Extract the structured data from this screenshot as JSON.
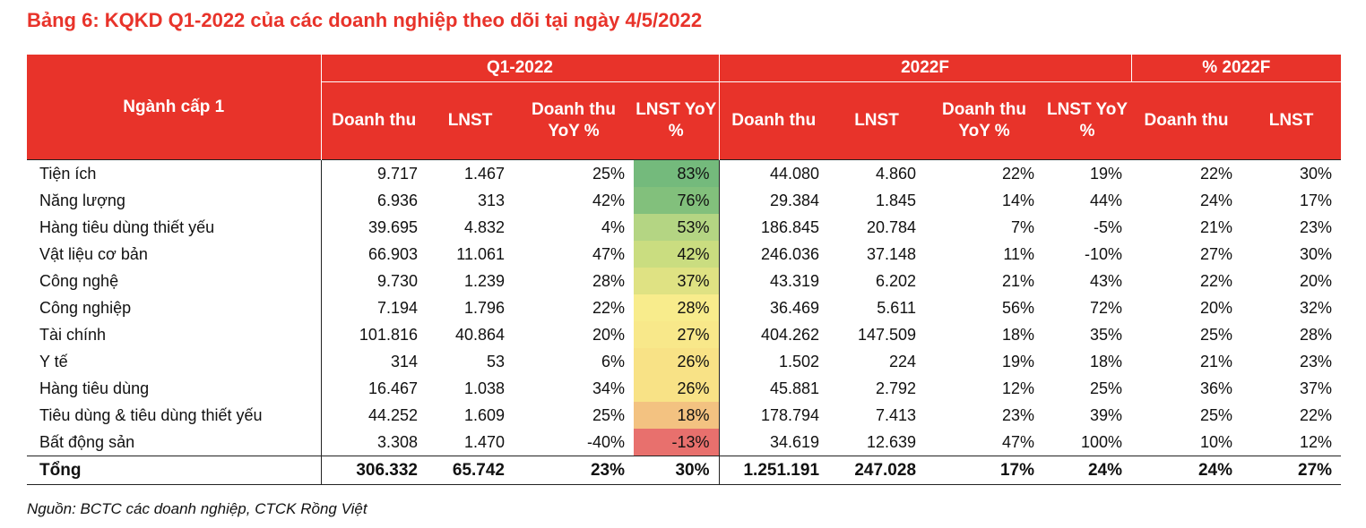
{
  "title": "Bảng 6: KQKD Q1-2022 của các doanh nghiệp theo dõi tại ngày 4/5/2022",
  "source": "Nguồn: BCTC các doanh nghiệp, CTCK Rồng Việt",
  "header": {
    "nganh": "Ngành cấp 1",
    "groups": [
      "Q1-2022",
      "2022F",
      "% 2022F"
    ],
    "q1_cols": [
      "Doanh thu",
      "LNST",
      "Doanh thu YoY %",
      "LNST YoY %"
    ],
    "f_cols": [
      "Doanh thu",
      "LNST",
      "Doanh thu YoY %",
      "LNST YoY %"
    ],
    "pct_cols": [
      "Doanh thu",
      "LNST"
    ]
  },
  "heat_colors": [
    "#74ba7c",
    "#82c07c",
    "#b4d583",
    "#cadd80",
    "#dfe283",
    "#f8ec8c",
    "#f8e88a",
    "#f8e286",
    "#f8e286",
    "#f3c281",
    "#e8706d"
  ],
  "rows": [
    {
      "name": "Tiện ích",
      "q1_rev": "9.717",
      "q1_np": "1.467",
      "q1_rev_yoy": "25%",
      "q1_np_yoy": "83%",
      "f_rev": "44.080",
      "f_np": "4.860",
      "f_rev_yoy": "22%",
      "f_np_yoy": "19%",
      "pct_rev": "22%",
      "pct_np": "30%"
    },
    {
      "name": "Năng lượng",
      "q1_rev": "6.936",
      "q1_np": "313",
      "q1_rev_yoy": "42%",
      "q1_np_yoy": "76%",
      "f_rev": "29.384",
      "f_np": "1.845",
      "f_rev_yoy": "14%",
      "f_np_yoy": "44%",
      "pct_rev": "24%",
      "pct_np": "17%"
    },
    {
      "name": "Hàng tiêu dùng thiết yếu",
      "q1_rev": "39.695",
      "q1_np": "4.832",
      "q1_rev_yoy": "4%",
      "q1_np_yoy": "53%",
      "f_rev": "186.845",
      "f_np": "20.784",
      "f_rev_yoy": "7%",
      "f_np_yoy": "-5%",
      "pct_rev": "21%",
      "pct_np": "23%"
    },
    {
      "name": "Vật liệu cơ bản",
      "q1_rev": "66.903",
      "q1_np": "11.061",
      "q1_rev_yoy": "47%",
      "q1_np_yoy": "42%",
      "f_rev": "246.036",
      "f_np": "37.148",
      "f_rev_yoy": "11%",
      "f_np_yoy": "-10%",
      "pct_rev": "27%",
      "pct_np": "30%"
    },
    {
      "name": "Công nghệ",
      "q1_rev": "9.730",
      "q1_np": "1.239",
      "q1_rev_yoy": "28%",
      "q1_np_yoy": "37%",
      "f_rev": "43.319",
      "f_np": "6.202",
      "f_rev_yoy": "21%",
      "f_np_yoy": "43%",
      "pct_rev": "22%",
      "pct_np": "20%"
    },
    {
      "name": "Công nghiệp",
      "q1_rev": "7.194",
      "q1_np": "1.796",
      "q1_rev_yoy": "22%",
      "q1_np_yoy": "28%",
      "f_rev": "36.469",
      "f_np": "5.611",
      "f_rev_yoy": "56%",
      "f_np_yoy": "72%",
      "pct_rev": "20%",
      "pct_np": "32%"
    },
    {
      "name": "Tài chính",
      "q1_rev": "101.816",
      "q1_np": "40.864",
      "q1_rev_yoy": "20%",
      "q1_np_yoy": "27%",
      "f_rev": "404.262",
      "f_np": "147.509",
      "f_rev_yoy": "18%",
      "f_np_yoy": "35%",
      "pct_rev": "25%",
      "pct_np": "28%"
    },
    {
      "name": "Y tế",
      "q1_rev": "314",
      "q1_np": "53",
      "q1_rev_yoy": "6%",
      "q1_np_yoy": "26%",
      "f_rev": "1.502",
      "f_np": "224",
      "f_rev_yoy": "19%",
      "f_np_yoy": "18%",
      "pct_rev": "21%",
      "pct_np": "23%"
    },
    {
      "name": "Hàng tiêu dùng",
      "q1_rev": "16.467",
      "q1_np": "1.038",
      "q1_rev_yoy": "34%",
      "q1_np_yoy": "26%",
      "f_rev": "45.881",
      "f_np": "2.792",
      "f_rev_yoy": "12%",
      "f_np_yoy": "25%",
      "pct_rev": "36%",
      "pct_np": "37%"
    },
    {
      "name": "Tiêu dùng & tiêu dùng thiết yếu",
      "q1_rev": "44.252",
      "q1_np": "1.609",
      "q1_rev_yoy": "25%",
      "q1_np_yoy": "18%",
      "f_rev": "178.794",
      "f_np": "7.413",
      "f_rev_yoy": "23%",
      "f_np_yoy": "39%",
      "pct_rev": "25%",
      "pct_np": "22%"
    },
    {
      "name": "Bất động sản",
      "q1_rev": "3.308",
      "q1_np": "1.470",
      "q1_rev_yoy": "-40%",
      "q1_np_yoy": "-13%",
      "f_rev": "34.619",
      "f_np": "12.639",
      "f_rev_yoy": "47%",
      "f_np_yoy": "100%",
      "pct_rev": "10%",
      "pct_np": "12%"
    }
  ],
  "total": {
    "name": "Tổng",
    "q1_rev": "306.332",
    "q1_np": "65.742",
    "q1_rev_yoy": "23%",
    "q1_np_yoy": "30%",
    "f_rev": "1.251.191",
    "f_np": "247.028",
    "f_rev_yoy": "17%",
    "f_np_yoy": "24%",
    "pct_rev": "24%",
    "pct_np": "27%"
  }
}
